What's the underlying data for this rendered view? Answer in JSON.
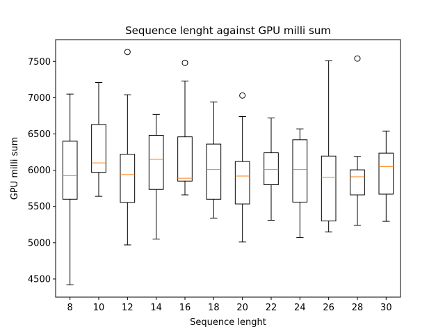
{
  "chart_data": {
    "type": "box",
    "title": "Sequence lenght against GPU milli sum",
    "xlabel": "Sequence lenght",
    "ylabel": "GPU milli sum",
    "categories": [
      "8",
      "10",
      "12",
      "14",
      "16",
      "18",
      "20",
      "22",
      "24",
      "26",
      "28",
      "30"
    ],
    "ylim": [
      4250,
      7800
    ],
    "yticks": [
      4500,
      5000,
      5500,
      6000,
      6500,
      7000,
      7500
    ],
    "grid": false,
    "colors": {
      "box": "#000000",
      "median": "#ff7f0e",
      "background": "#ffffff"
    },
    "boxes": [
      {
        "label": "8",
        "whisker_low": 4420,
        "q1": 5600,
        "median": 5925,
        "q3": 6400,
        "whisker_high": 7050,
        "outliers": []
      },
      {
        "label": "10",
        "whisker_low": 5640,
        "q1": 5970,
        "median": 6100,
        "q3": 6630,
        "whisker_high": 7210,
        "outliers": []
      },
      {
        "label": "12",
        "whisker_low": 4970,
        "q1": 5555,
        "median": 5940,
        "q3": 6220,
        "whisker_high": 7040,
        "outliers": [
          7630
        ]
      },
      {
        "label": "14",
        "whisker_low": 5050,
        "q1": 5735,
        "median": 6150,
        "q3": 6480,
        "whisker_high": 6770,
        "outliers": []
      },
      {
        "label": "16",
        "whisker_low": 5660,
        "q1": 5850,
        "median": 5890,
        "q3": 6460,
        "whisker_high": 7230,
        "outliers": [
          7480
        ]
      },
      {
        "label": "18",
        "whisker_low": 5340,
        "q1": 5600,
        "median": 6010,
        "q3": 6360,
        "whisker_high": 6940,
        "outliers": []
      },
      {
        "label": "20",
        "whisker_low": 5010,
        "q1": 5535,
        "median": 5920,
        "q3": 6120,
        "whisker_high": 6740,
        "outliers": [
          7030
        ]
      },
      {
        "label": "22",
        "whisker_low": 5310,
        "q1": 5800,
        "median": 6010,
        "q3": 6240,
        "whisker_high": 6720,
        "outliers": []
      },
      {
        "label": "24",
        "whisker_low": 5070,
        "q1": 5560,
        "median": 6010,
        "q3": 6420,
        "whisker_high": 6570,
        "outliers": []
      },
      {
        "label": "26",
        "whisker_low": 5150,
        "q1": 5300,
        "median": 5900,
        "q3": 6195,
        "whisker_high": 7510,
        "outliers": []
      },
      {
        "label": "28",
        "whisker_low": 5240,
        "q1": 5660,
        "median": 5910,
        "q3": 6005,
        "whisker_high": 6190,
        "outliers": [
          7540
        ]
      },
      {
        "label": "30",
        "whisker_low": 5295,
        "q1": 5670,
        "median": 6050,
        "q3": 6235,
        "whisker_high": 6540,
        "outliers": []
      }
    ]
  }
}
